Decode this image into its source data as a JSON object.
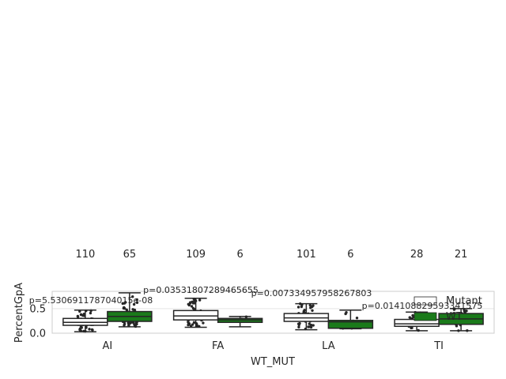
{
  "chart_data": {
    "type": "box",
    "xlabel": "WT_MUT",
    "ylabel": "PercentGpA",
    "categories": [
      "AI",
      "FA",
      "LA",
      "TI"
    ],
    "yticks": [
      "0.0",
      "0.5"
    ],
    "ylim": [
      0.0,
      0.85
    ],
    "grid": true,
    "legend_position": "upper right",
    "series": [
      {
        "name": "Mutant",
        "color": "#ffffff",
        "counts": [
          110,
          109,
          101,
          28
        ],
        "boxes": [
          {
            "whislo": 0.03,
            "q1": 0.16,
            "med": 0.22,
            "q3": 0.3,
            "whishi": 0.47
          },
          {
            "whislo": 0.12,
            "q1": 0.27,
            "med": 0.35,
            "q3": 0.46,
            "whishi": 0.71
          },
          {
            "whislo": 0.07,
            "q1": 0.24,
            "med": 0.31,
            "q3": 0.4,
            "whishi": 0.6
          },
          {
            "whislo": 0.05,
            "q1": 0.14,
            "med": 0.19,
            "q3": 0.28,
            "whishi": 0.43
          }
        ]
      },
      {
        "name": "WT",
        "color": "#1a7a1a",
        "counts": [
          65,
          6,
          6,
          21
        ],
        "boxes": [
          {
            "whislo": 0.13,
            "q1": 0.24,
            "med": 0.34,
            "q3": 0.44,
            "whishi": 0.82
          },
          {
            "whislo": 0.13,
            "q1": 0.22,
            "med": 0.27,
            "q3": 0.3,
            "whishi": 0.34
          },
          {
            "whislo": 0.09,
            "q1": 0.1,
            "med": 0.23,
            "q3": 0.26,
            "whishi": 0.47
          },
          {
            "whislo": 0.05,
            "q1": 0.18,
            "med": 0.29,
            "q3": 0.4,
            "whishi": 0.5
          }
        ]
      }
    ],
    "pvalues": [
      "p=5.530691178704015e-08",
      "p=0.03531807289465655",
      "p=0.007334957958267803",
      "p=0.014108829593341575"
    ]
  }
}
